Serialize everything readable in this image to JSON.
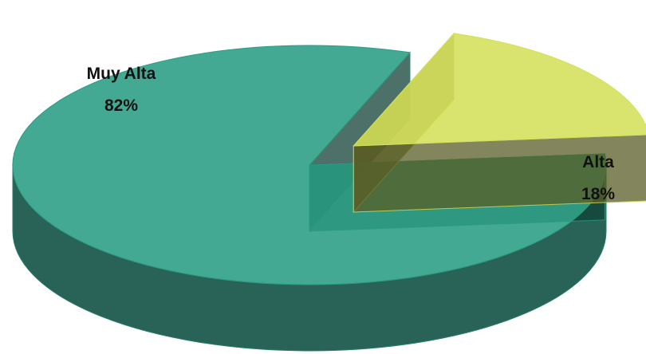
{
  "chart_data": {
    "type": "pie",
    "title": "",
    "categories": [
      "Muy Alta",
      "Alta"
    ],
    "values": [
      82,
      18
    ],
    "value_labels": [
      "82%",
      "18%"
    ],
    "exploded": [
      false,
      true
    ],
    "colors": [
      "#2a9d84",
      "#d4e05a"
    ],
    "style": "3d-transparent",
    "legend": "none"
  }
}
